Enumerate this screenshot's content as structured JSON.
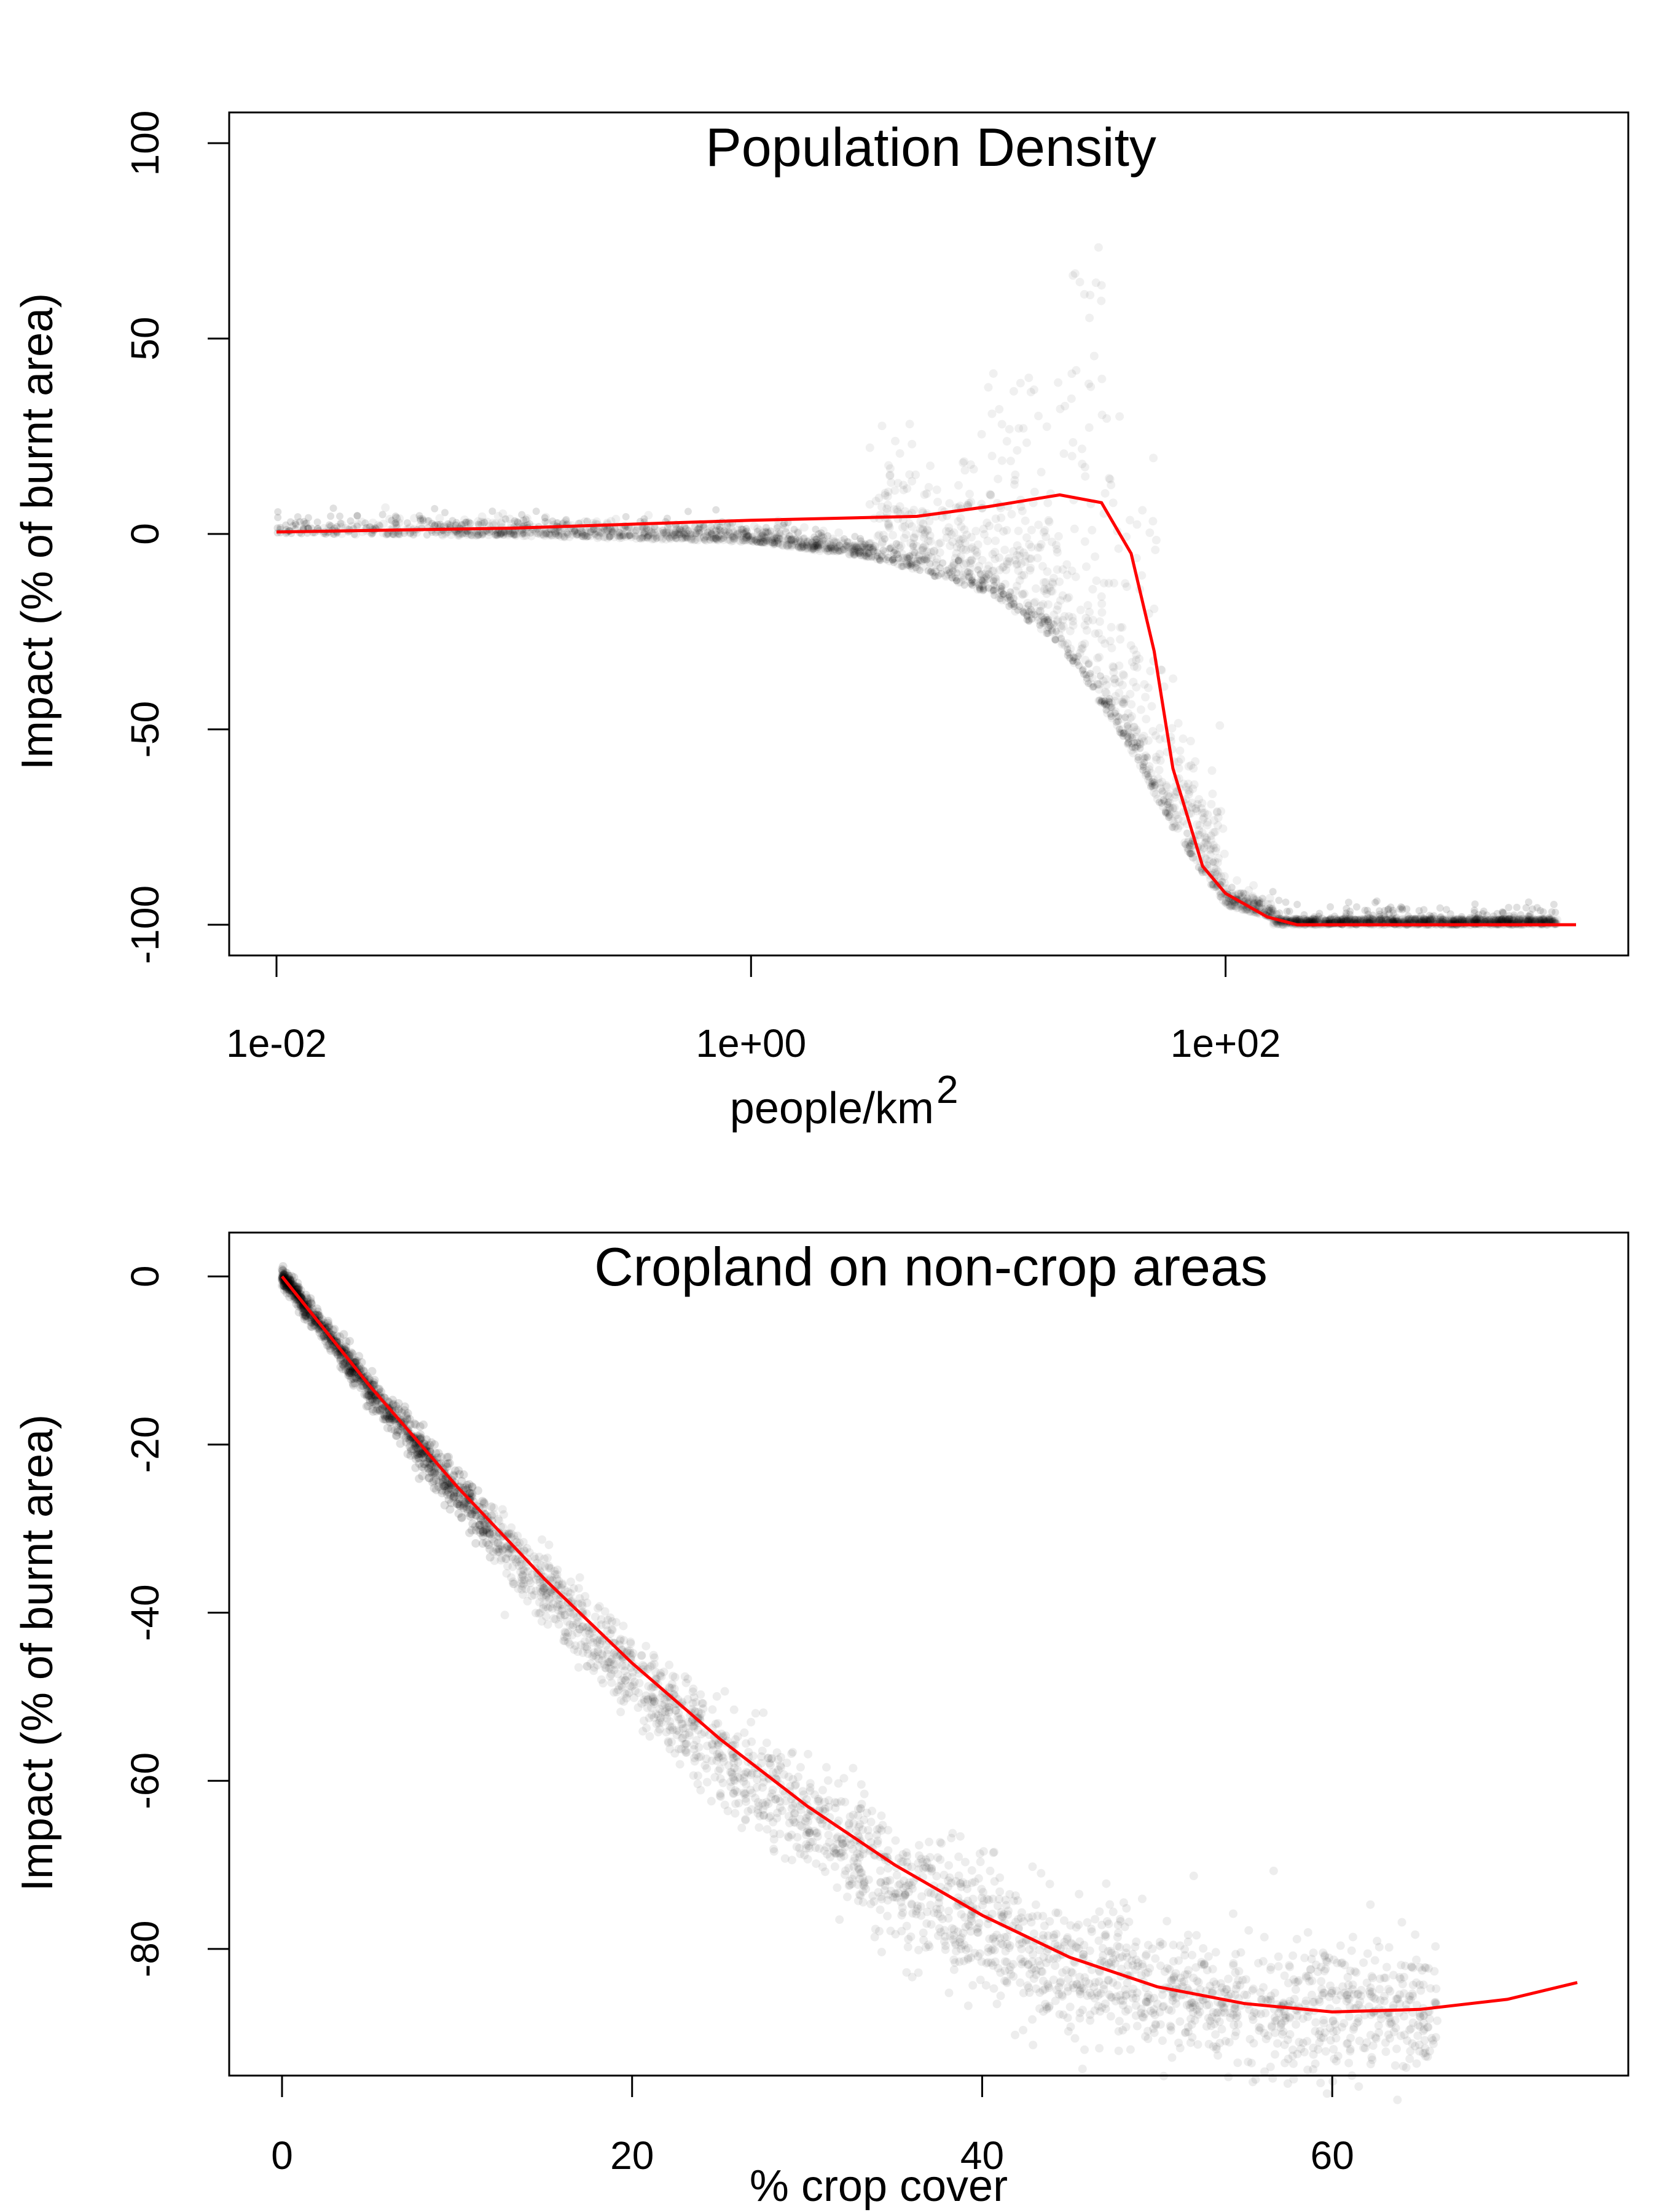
{
  "chart_data": [
    {
      "type": "scatter",
      "title": "Population Density",
      "xlabel": "people/km",
      "xlabel_superscript": "2",
      "ylabel": "Impact (% of burnt area)",
      "xscale": "log",
      "xlim": [
        0.01,
        3000
      ],
      "ylim": [
        -100,
        100
      ],
      "x_ticks": [
        0.01,
        1,
        100
      ],
      "x_tick_labels": [
        "1e-02",
        "1e+00",
        "1e+02"
      ],
      "y_ticks": [
        100,
        50,
        0,
        -50,
        -100
      ],
      "y_tick_labels": [
        "100",
        "50",
        "0",
        "-50",
        "-100"
      ],
      "grid": false,
      "points_color": "#000000",
      "series": [
        {
          "type": "line",
          "color": "#ff0000",
          "x": [
            0.01,
            0.1,
            1,
            5,
            10,
            20,
            30,
            40,
            50,
            60,
            80,
            100,
            150,
            200,
            300,
            500,
            1000,
            2000,
            3000
          ],
          "y": [
            0.5,
            1.5,
            3.5,
            4.5,
            7,
            10,
            8,
            -5,
            -30,
            -60,
            -85,
            -92,
            -98,
            -100,
            -100,
            -100,
            -100,
            -100,
            -100
          ]
        }
      ]
    },
    {
      "type": "scatter",
      "title": "Cropland on non-crop areas",
      "xlabel": "% crop cover",
      "ylabel": "Impact (% of burnt area)",
      "xlim": [
        0,
        74
      ],
      "ylim": [
        -92,
        2
      ],
      "x_ticks": [
        0,
        20,
        40,
        60
      ],
      "x_tick_labels": [
        "0",
        "20",
        "40",
        "60"
      ],
      "y_ticks": [
        0,
        -20,
        -40,
        -60,
        -80
      ],
      "y_tick_labels": [
        "0",
        "-20",
        "-40",
        "-60",
        "-80"
      ],
      "grid": false,
      "points_color": "#000000",
      "series": [
        {
          "type": "line",
          "color": "#ff0000",
          "x": [
            0,
            5,
            10,
            15,
            20,
            25,
            30,
            35,
            40,
            45,
            50,
            55,
            60,
            65,
            70,
            74
          ],
          "y": [
            0,
            -13,
            -25,
            -36,
            -46,
            -55,
            -63,
            -70,
            -76,
            -81,
            -84.5,
            -86.5,
            -87.5,
            -87.2,
            -86,
            -84
          ]
        }
      ]
    }
  ]
}
